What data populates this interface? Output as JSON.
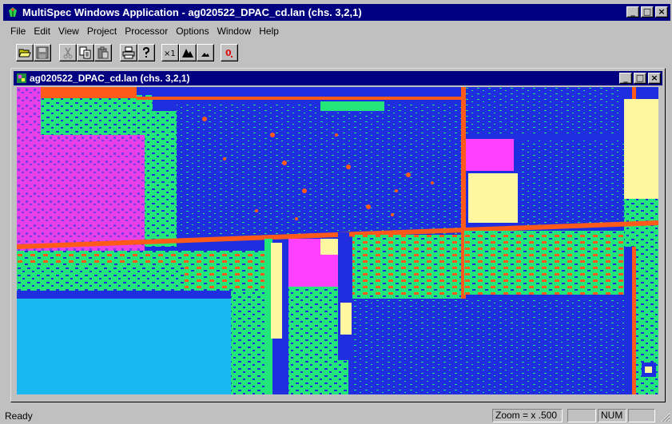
{
  "window": {
    "title": "MultiSpec Windows Application - ag020522_DPAC_cd.lan (chs. 3,2,1)",
    "buttons": {
      "minimize": "_",
      "maximize": "□",
      "close": "×"
    }
  },
  "menubar": {
    "items": [
      {
        "label": "File"
      },
      {
        "label": "Edit"
      },
      {
        "label": "View"
      },
      {
        "label": "Project"
      },
      {
        "label": "Processor"
      },
      {
        "label": "Options"
      },
      {
        "label": "Window"
      },
      {
        "label": "Help"
      }
    ]
  },
  "toolbar": {
    "buttons": [
      {
        "name": "open-icon"
      },
      {
        "name": "save-icon"
      },
      {
        "name": "cut-icon"
      },
      {
        "name": "copy-icon"
      },
      {
        "name": "paste-icon"
      },
      {
        "name": "print-icon"
      },
      {
        "name": "help-icon"
      },
      {
        "name": "zoom-x1-icon",
        "label": "×1"
      },
      {
        "name": "zoom-in-icon"
      },
      {
        "name": "zoom-out-icon"
      },
      {
        "name": "overlay-icon",
        "label": "0"
      }
    ]
  },
  "child_window": {
    "title": "ag020522_DPAC_cd.lan (chs. 3,2,1)",
    "buttons": {
      "minimize": "_",
      "maximize": "□",
      "close": "×"
    }
  },
  "image": {
    "palette": {
      "blue": "#1f2fe0",
      "green": "#22e67a",
      "orange": "#ff5a1a",
      "magenta": "#ff40ff",
      "purple": "#7a3ce6",
      "cyan": "#18b8f0",
      "yellow": "#fff6a0",
      "white": "#ffffff"
    }
  },
  "statusbar": {
    "ready": "Ready",
    "zoom": "Zoom = x .500",
    "num": "NUM"
  }
}
